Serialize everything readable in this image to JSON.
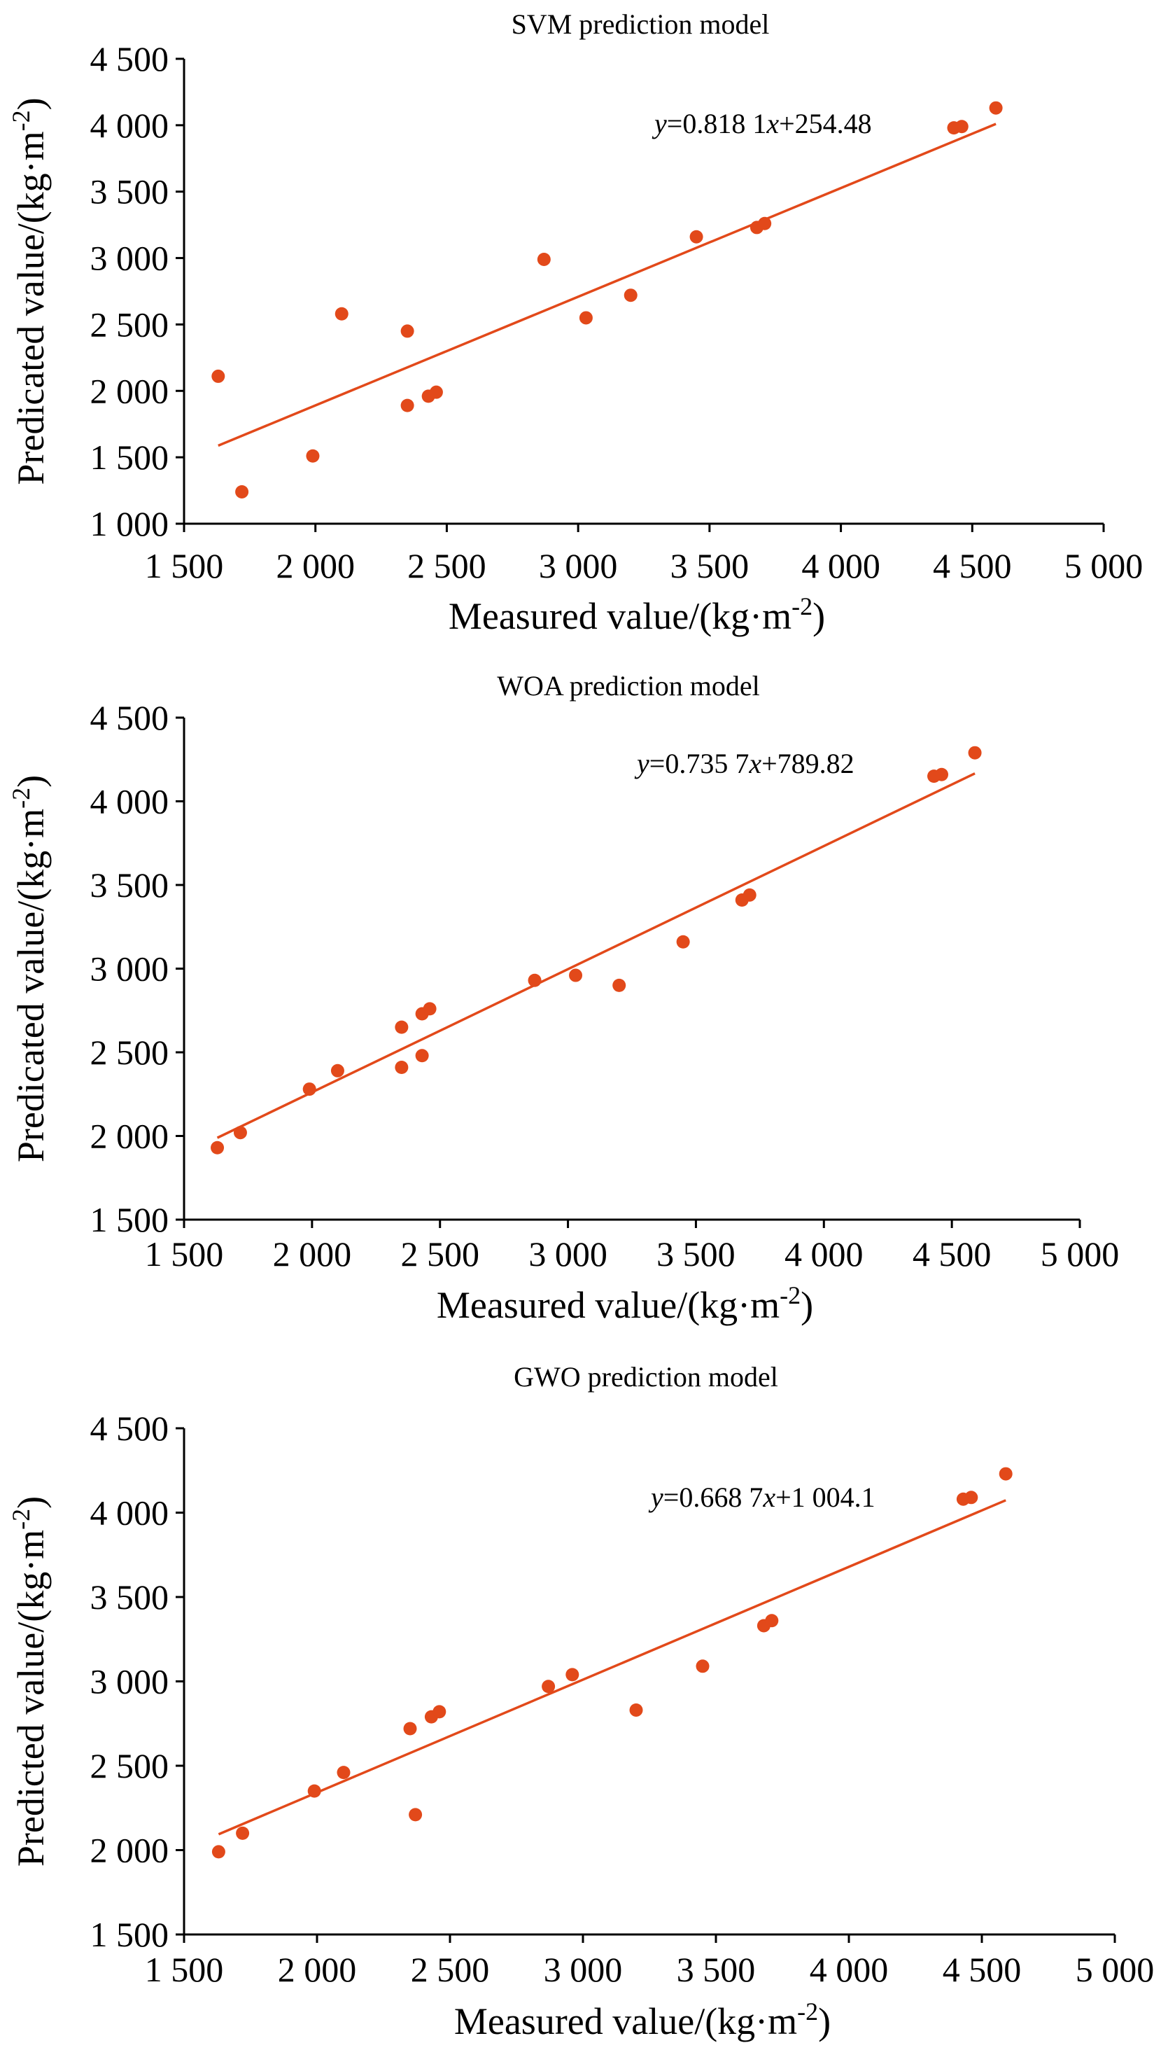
{
  "colors": {
    "accent": "#e2491a",
    "axis": "#000000"
  },
  "chart_data": [
    {
      "type": "scatter",
      "title": "SVM prediction model",
      "xlabel": "Measured value/(kg·m-2)",
      "ylabel": "Predicated value/(kg·m-2)",
      "xlim": [
        1500,
        5000
      ],
      "ylim": [
        1000,
        4500
      ],
      "x_ticks": [
        1500,
        2000,
        2500,
        3000,
        3500,
        4000,
        4500,
        5000
      ],
      "x_tick_labels": [
        "1 500",
        "2 000",
        "2 500",
        "3 000",
        "3 500",
        "4 000",
        "4 500",
        "5 000"
      ],
      "y_ticks": [
        1000,
        1500,
        2000,
        2500,
        3000,
        3500,
        4000,
        4500
      ],
      "y_tick_labels": [
        "1 000",
        "1 500",
        "2 000",
        "2 500",
        "3 000",
        "3 500",
        "4 000",
        "4 500"
      ],
      "grid": false,
      "equation": {
        "y": "y",
        "mid": "=0.818 1",
        "x": "x",
        "rest": "+254.48"
      },
      "fit": {
        "slope": 0.8181,
        "intercept": 254.48,
        "x_range": [
          1630,
          4590
        ]
      },
      "points": [
        {
          "x": 1630,
          "y": 2110
        },
        {
          "x": 1720,
          "y": 1240
        },
        {
          "x": 1990,
          "y": 1510
        },
        {
          "x": 2100,
          "y": 2580
        },
        {
          "x": 2350,
          "y": 2450
        },
        {
          "x": 2350,
          "y": 1890
        },
        {
          "x": 2430,
          "y": 1960
        },
        {
          "x": 2460,
          "y": 1990
        },
        {
          "x": 2870,
          "y": 2990
        },
        {
          "x": 3030,
          "y": 2550
        },
        {
          "x": 3200,
          "y": 2720
        },
        {
          "x": 3450,
          "y": 3160
        },
        {
          "x": 3680,
          "y": 3230
        },
        {
          "x": 3710,
          "y": 3260
        },
        {
          "x": 4430,
          "y": 3980
        },
        {
          "x": 4460,
          "y": 3990
        },
        {
          "x": 4590,
          "y": 4130
        }
      ]
    },
    {
      "type": "scatter",
      "title": "WOA prediction model",
      "xlabel": "Measured value/(kg·m-2)",
      "ylabel": "Predicated value/(kg·m-2)",
      "xlim": [
        1500,
        5000
      ],
      "ylim": [
        1500,
        4500
      ],
      "x_ticks": [
        1500,
        2000,
        2500,
        3000,
        3500,
        4000,
        4500,
        5000
      ],
      "x_tick_labels": [
        "1 500",
        "2 000",
        "2 500",
        "3 000",
        "3 500",
        "4 000",
        "4 500",
        "5 000"
      ],
      "y_ticks": [
        1500,
        2000,
        2500,
        3000,
        3500,
        4000,
        4500
      ],
      "y_tick_labels": [
        "1 500",
        "2 000",
        "2 500",
        "3 000",
        "3 500",
        "4 000",
        "4 500"
      ],
      "grid": false,
      "equation": {
        "y": "y",
        "mid": "=0.735 7",
        "x": "x",
        "rest": "+789.82"
      },
      "fit": {
        "slope": 0.7357,
        "intercept": 789.82,
        "x_range": [
          1630,
          4590
        ]
      },
      "points": [
        {
          "x": 1630,
          "y": 1930
        },
        {
          "x": 1720,
          "y": 2020
        },
        {
          "x": 1990,
          "y": 2280
        },
        {
          "x": 2100,
          "y": 2390
        },
        {
          "x": 2350,
          "y": 2650
        },
        {
          "x": 2350,
          "y": 2410
        },
        {
          "x": 2430,
          "y": 2730
        },
        {
          "x": 2460,
          "y": 2760
        },
        {
          "x": 2430,
          "y": 2480
        },
        {
          "x": 2870,
          "y": 2930
        },
        {
          "x": 3030,
          "y": 2960
        },
        {
          "x": 3200,
          "y": 2900
        },
        {
          "x": 3450,
          "y": 3160
        },
        {
          "x": 3680,
          "y": 3410
        },
        {
          "x": 3710,
          "y": 3440
        },
        {
          "x": 4430,
          "y": 4150
        },
        {
          "x": 4460,
          "y": 4160
        },
        {
          "x": 4590,
          "y": 4290
        }
      ]
    },
    {
      "type": "scatter",
      "title": "GWO prediction model",
      "xlabel": "Measured value/(kg·m-2)",
      "ylabel": "Predicted value/(kg·m-2)",
      "xlim": [
        1500,
        5000
      ],
      "ylim": [
        1500,
        4500
      ],
      "x_ticks": [
        1500,
        2000,
        2500,
        3000,
        3500,
        4000,
        4500,
        5000
      ],
      "x_tick_labels": [
        "1 500",
        "2 000",
        "2 500",
        "3 000",
        "3 500",
        "4 000",
        "4 500",
        "5 000"
      ],
      "y_ticks": [
        1500,
        2000,
        2500,
        3000,
        3500,
        4000,
        4500
      ],
      "y_tick_labels": [
        "1 500",
        "2 000",
        "2 500",
        "3 000",
        "3 500",
        "4 000",
        "4 500"
      ],
      "grid": false,
      "equation": {
        "y": "y",
        "mid": "=0.668 7",
        "x": "x",
        "rest": "+1 004.1"
      },
      "fit": {
        "slope": 0.6687,
        "intercept": 1004.1,
        "x_range": [
          1630,
          4590
        ]
      },
      "points": [
        {
          "x": 1630,
          "y": 1990
        },
        {
          "x": 1720,
          "y": 2100
        },
        {
          "x": 1990,
          "y": 2350
        },
        {
          "x": 2100,
          "y": 2460
        },
        {
          "x": 2350,
          "y": 2720
        },
        {
          "x": 2370,
          "y": 2210
        },
        {
          "x": 2430,
          "y": 2790
        },
        {
          "x": 2460,
          "y": 2820
        },
        {
          "x": 2870,
          "y": 2970
        },
        {
          "x": 2960,
          "y": 3040
        },
        {
          "x": 3200,
          "y": 2830
        },
        {
          "x": 3450,
          "y": 3090
        },
        {
          "x": 3680,
          "y": 3330
        },
        {
          "x": 3710,
          "y": 3360
        },
        {
          "x": 4430,
          "y": 4080
        },
        {
          "x": 4460,
          "y": 4090
        },
        {
          "x": 4590,
          "y": 4230
        }
      ]
    }
  ]
}
